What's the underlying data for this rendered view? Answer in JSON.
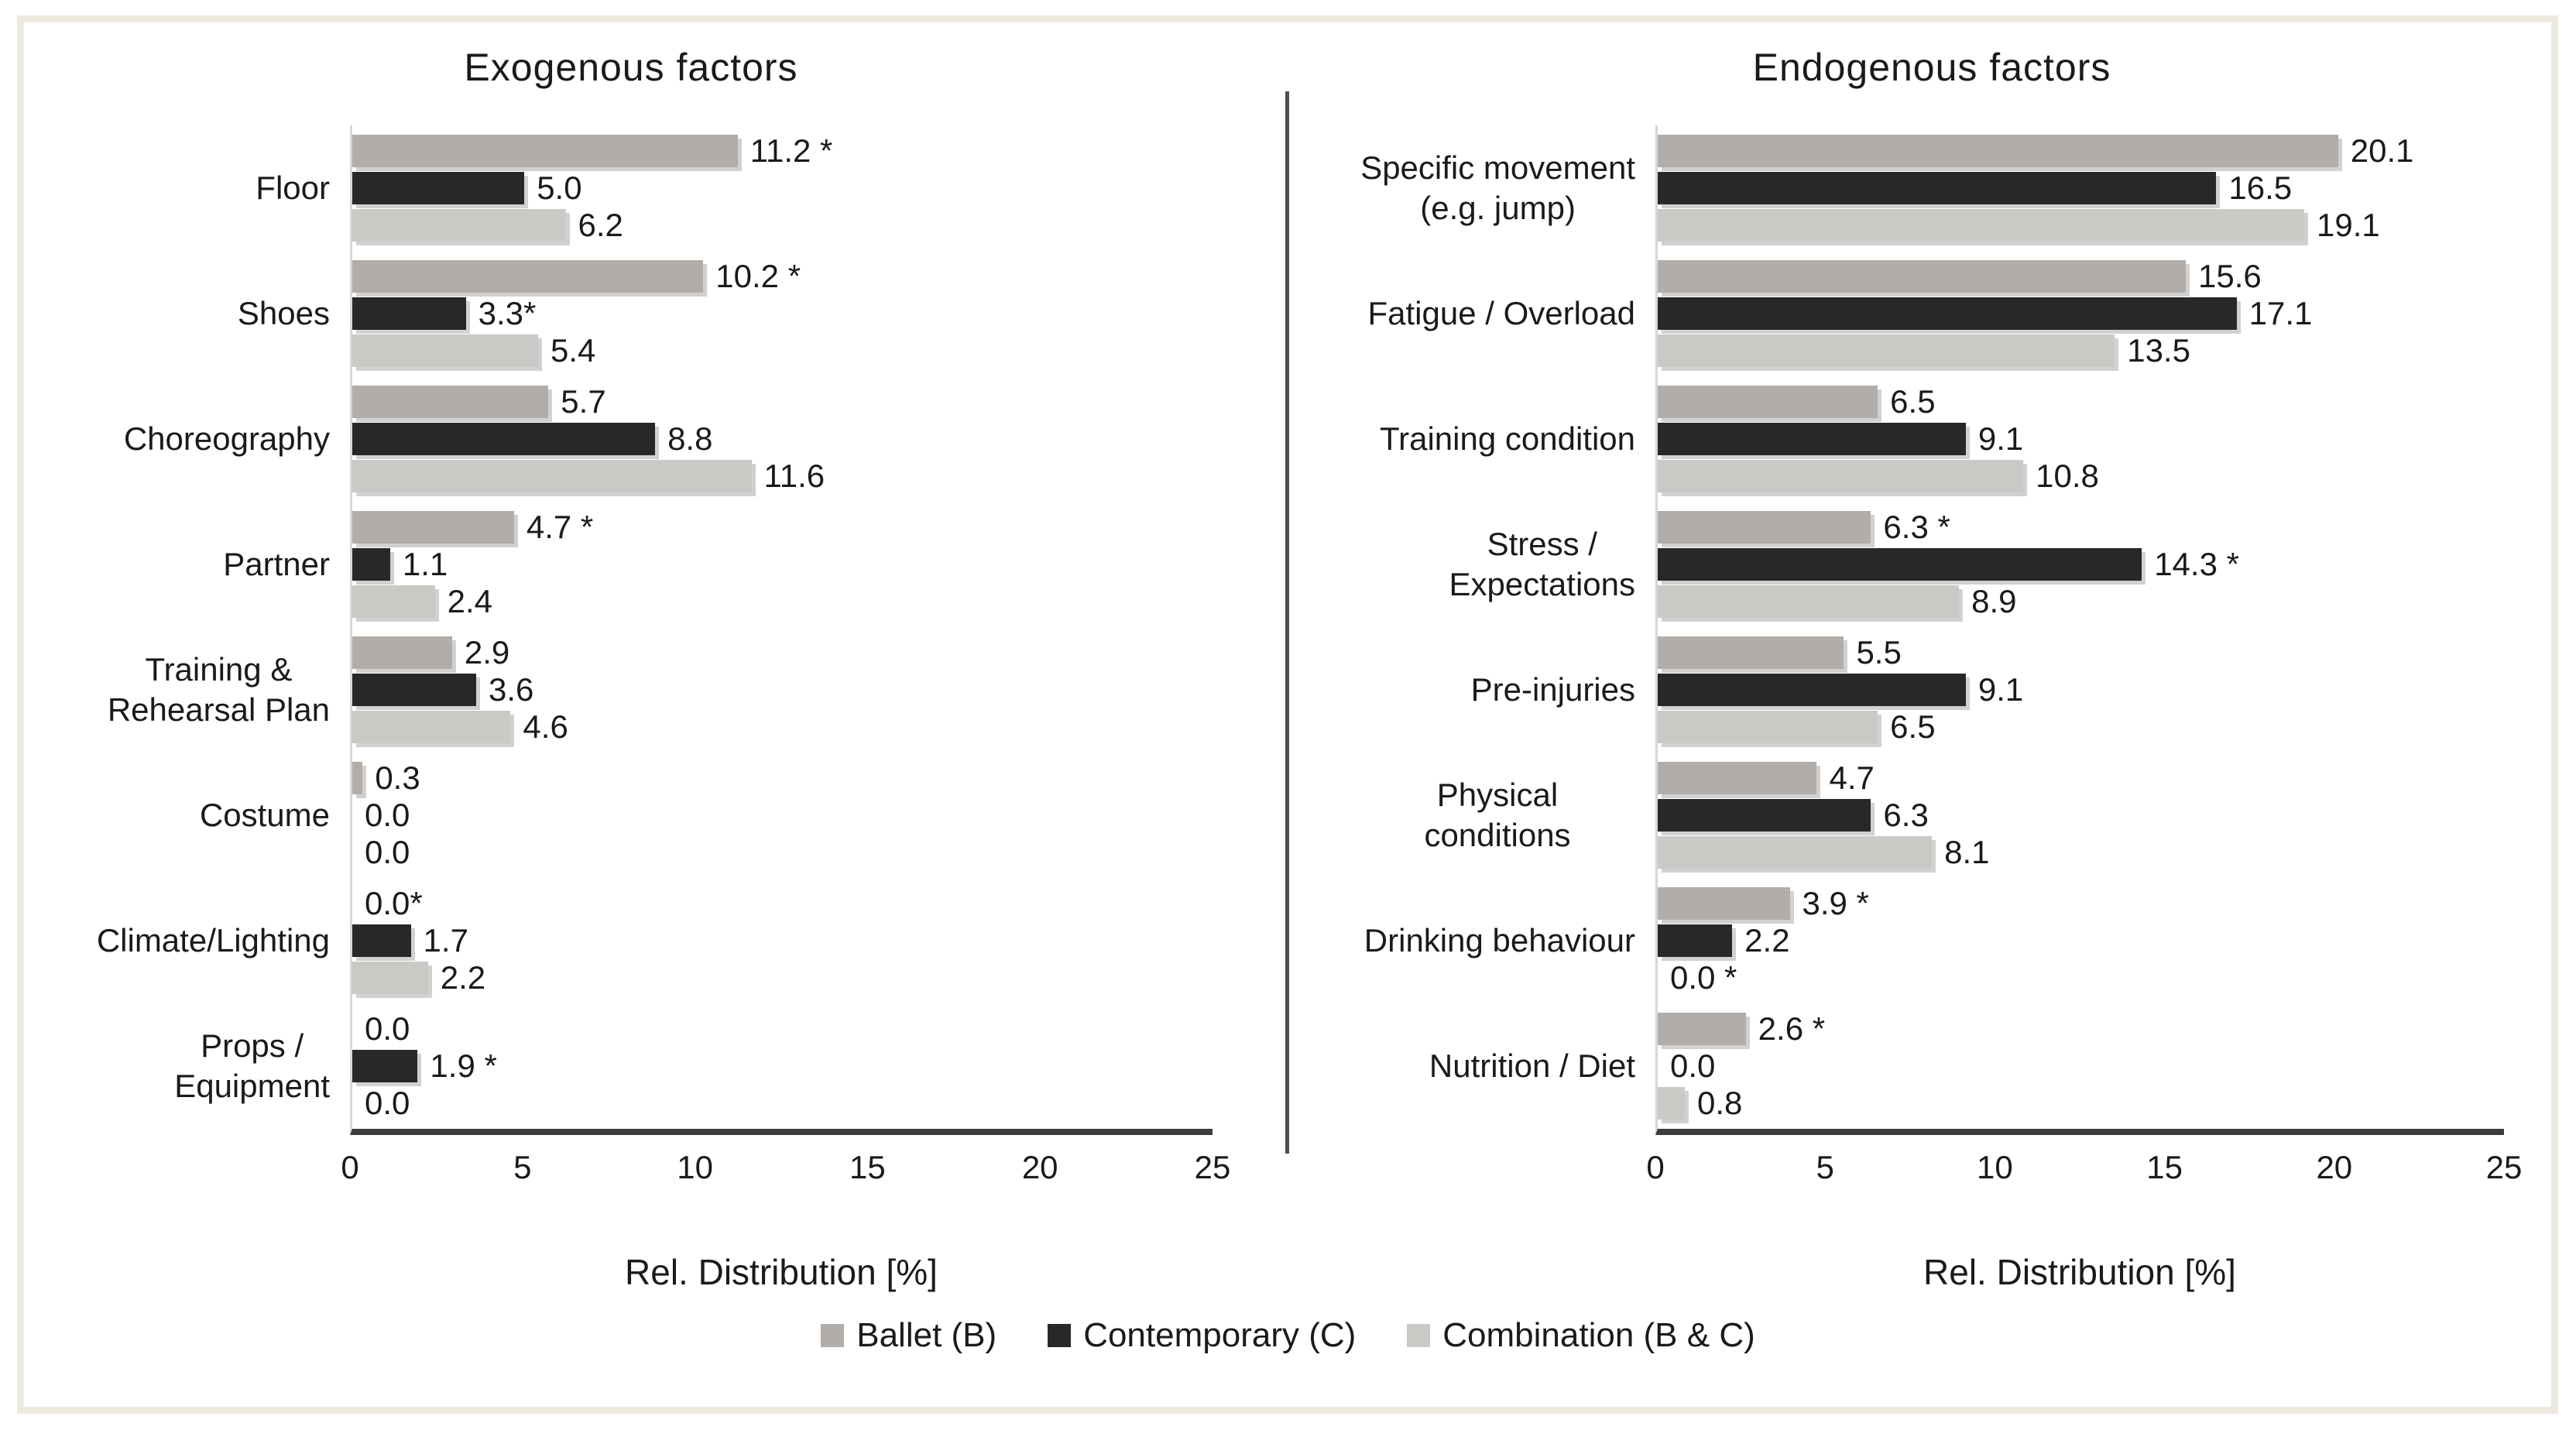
{
  "figure": {
    "background": "#ffffff",
    "frame_color": "#eceade",
    "divider_color": "#4f4f4f",
    "axis_line_color": "#3d3d3d",
    "baseline_color": "#d7d7d7",
    "text_color": "#1a1a1a"
  },
  "legend": [
    {
      "label": "Ballet (B)",
      "color": "#b2ada9"
    },
    {
      "label": "Contemporary (C)",
      "color": "#282828"
    },
    {
      "label": "Combination (B & C)",
      "color": "#cac9c6"
    }
  ],
  "chart_data": [
    {
      "type": "bar",
      "orientation": "horizontal",
      "title": "Exogenous factors",
      "xlabel": "Rel. Distribution [%]",
      "xlim": [
        0,
        25
      ],
      "xticks": [
        0,
        5,
        10,
        15,
        20,
        25
      ],
      "grid": false,
      "legend_position": "bottom",
      "categories": [
        "Floor",
        "Shoes",
        "Choreography",
        "Partner",
        "Training &\nRehearsal Plan",
        "Costume",
        "Climate/Lighting",
        "Props /\nEquipment"
      ],
      "series": [
        {
          "name": "Ballet (B)",
          "color": "#b2ada9",
          "values": [
            11.2,
            10.2,
            5.7,
            4.7,
            2.9,
            0.3,
            0.0,
            0.0
          ],
          "labels": [
            "11.2 *",
            "10.2 *",
            "5.7",
            "4.7 *",
            "2.9",
            "0.3",
            "0.0*",
            "0.0"
          ]
        },
        {
          "name": "Contemporary (C)",
          "color": "#282828",
          "values": [
            5.0,
            3.3,
            8.8,
            1.1,
            3.6,
            0.0,
            1.7,
            1.9
          ],
          "labels": [
            "5.0",
            "3.3*",
            "8.8",
            "1.1",
            "3.6",
            "0.0",
            "1.7",
            "1.9 *"
          ]
        },
        {
          "name": "Combination (B & C)",
          "color": "#cac9c6",
          "values": [
            6.2,
            5.4,
            11.6,
            2.4,
            4.6,
            0.0,
            2.2,
            0.0
          ],
          "labels": [
            "6.2",
            "5.4",
            "11.6",
            "2.4",
            "4.6",
            "0.0",
            "2.2",
            "0.0"
          ]
        }
      ]
    },
    {
      "type": "bar",
      "orientation": "horizontal",
      "title": "Endogenous factors",
      "xlabel": "Rel. Distribution [%]",
      "xlim": [
        0,
        25
      ],
      "xticks": [
        0,
        5,
        10,
        15,
        20,
        25
      ],
      "grid": false,
      "legend_position": "bottom",
      "categories": [
        "Specific movement\n(e.g. jump)",
        "Fatigue / Overload",
        "Training condition",
        "Stress /\nExpectations",
        "Pre-injuries",
        "Physical conditions",
        "Drinking behaviour",
        "Nutrition / Diet"
      ],
      "series": [
        {
          "name": "Ballet (B)",
          "color": "#b2ada9",
          "values": [
            20.1,
            15.6,
            6.5,
            6.3,
            5.5,
            4.7,
            3.9,
            2.6
          ],
          "labels": [
            "20.1",
            "15.6",
            "6.5",
            "6.3 *",
            "5.5",
            "4.7",
            "3.9 *",
            "2.6 *"
          ]
        },
        {
          "name": "Contemporary (C)",
          "color": "#282828",
          "values": [
            16.5,
            17.1,
            9.1,
            14.3,
            9.1,
            6.3,
            2.2,
            0.0
          ],
          "labels": [
            "16.5",
            "17.1",
            "9.1",
            "14.3 *",
            "9.1",
            "6.3",
            "2.2",
            "0.0"
          ]
        },
        {
          "name": "Combination (B & C)",
          "color": "#cac9c6",
          "values": [
            19.1,
            13.5,
            10.8,
            8.9,
            6.5,
            8.1,
            0.0,
            0.8
          ],
          "labels": [
            "19.1",
            "13.5",
            "10.8",
            "8.9",
            "6.5",
            "8.1",
            "0.0 *",
            "0.8"
          ]
        }
      ]
    }
  ]
}
